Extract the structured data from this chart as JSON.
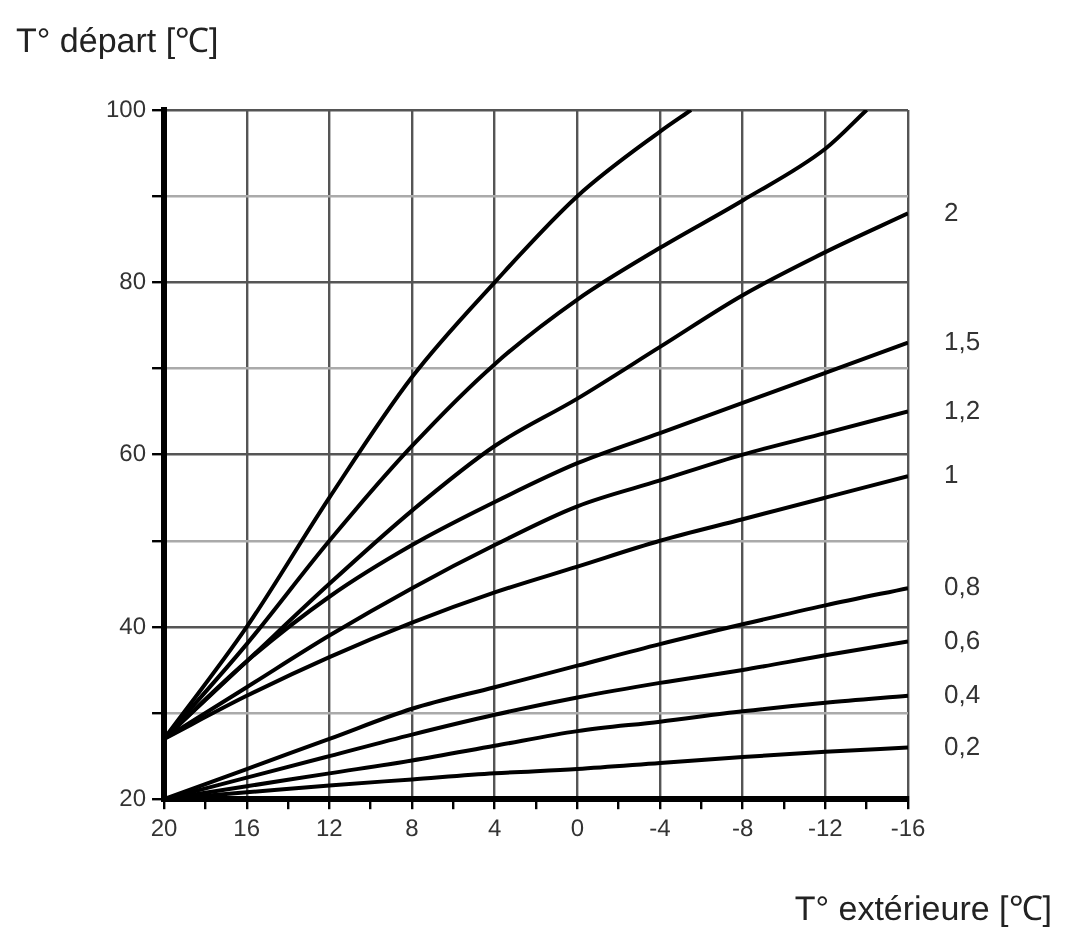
{
  "chart_data": {
    "type": "line",
    "xlabel": "T° extérieure [℃]",
    "ylabel": "T° départ [℃]",
    "x": [
      20,
      16,
      12,
      8,
      4,
      0,
      -4,
      -8,
      -12,
      -16
    ],
    "xlim": [
      20,
      -16
    ],
    "ylim": [
      20,
      100
    ],
    "xticks": [
      20,
      {
        "value": 18,
        "label": null
      },
      16,
      {
        "value": 14,
        "label": null
      },
      12,
      {
        "value": 10,
        "label": null
      },
      8,
      {
        "value": 6,
        "label": null
      },
      4,
      {
        "value": 2,
        "label": null
      },
      0,
      {
        "value": -2,
        "label": null
      },
      -4,
      {
        "value": -6,
        "label": null
      },
      -8,
      {
        "value": -10,
        "label": null
      },
      -12,
      {
        "value": -14,
        "label": null
      },
      -16
    ],
    "yticks": [
      20,
      {
        "value": 30,
        "label": null
      },
      40,
      {
        "value": 50,
        "label": null
      },
      60,
      {
        "value": 70,
        "label": null
      },
      80,
      {
        "value": 90,
        "label": null
      },
      100
    ],
    "grid": true,
    "legend": false,
    "marker": "none",
    "line_style": "solid",
    "series": [
      {
        "color": "#000000",
        "x": [
          20,
          16,
          12,
          8,
          4,
          0,
          -4,
          -5.5
        ],
        "values": [
          27,
          40,
          55,
          69,
          80,
          90,
          97.5,
          100
        ]
      },
      {
        "color": "#000000",
        "x": [
          20,
          16,
          12,
          8,
          4,
          0,
          -4,
          -8,
          -12,
          -14
        ],
        "values": [
          27,
          38,
          50,
          61,
          70.5,
          78,
          84,
          89.5,
          95.5,
          100
        ]
      },
      {
        "name": "2",
        "color": "#000000",
        "values": [
          27,
          36,
          45,
          53.5,
          61,
          66.5,
          72.5,
          78.5,
          83.5,
          88
        ]
      },
      {
        "name": "1,5",
        "color": "#000000",
        "values": [
          27,
          36,
          43.5,
          49.5,
          54.5,
          59,
          62.5,
          66,
          69.5,
          73
        ]
      },
      {
        "name": "1,2",
        "color": "#000000",
        "values": [
          27,
          33,
          39,
          44.5,
          49.5,
          54,
          57,
          60,
          62.5,
          65
        ]
      },
      {
        "name": "1",
        "color": "#000000",
        "values": [
          27,
          32,
          36.5,
          40.5,
          44,
          47,
          50,
          52.5,
          55,
          57.5
        ]
      },
      {
        "name": "0,8",
        "color": "#000000",
        "values": [
          20,
          23.5,
          27,
          30.5,
          33,
          35.5,
          38,
          40.3,
          42.5,
          44.5
        ]
      },
      {
        "name": "0,6",
        "color": "#000000",
        "values": [
          20,
          22.5,
          25,
          27.5,
          29.8,
          31.8,
          33.5,
          35,
          36.7,
          38.3
        ]
      },
      {
        "name": "0,4",
        "color": "#000000",
        "values": [
          20,
          21.5,
          23,
          24.5,
          26.2,
          27.9,
          29,
          30.2,
          31.2,
          32
        ]
      },
      {
        "name": "0,2",
        "color": "#000000",
        "values": [
          20,
          20.8,
          21.6,
          22.3,
          23,
          23.5,
          24.2,
          24.9,
          25.5,
          26
        ]
      }
    ]
  }
}
